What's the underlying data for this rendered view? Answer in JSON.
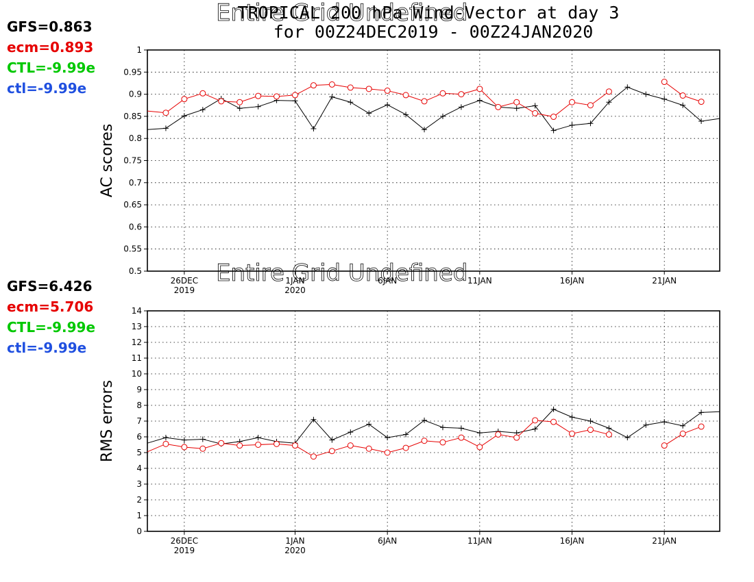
{
  "title": {
    "line1": "TROPICAL 200 hPa Wind-Vector at day 3",
    "line2": "for 00Z24DEC2019 - 00Z24JAN2020"
  },
  "ghost_text": "Entire Grid Undefined",
  "colors": {
    "gfs": "#000000",
    "ecm": "#e60000",
    "ctl_upper": "#00c800",
    "ctl_lower": "#2050e0"
  },
  "scores_ac": [
    {
      "label": "GFS=0.863",
      "color": "#000000"
    },
    {
      "label": "ecm=0.893",
      "color": "#e60000"
    },
    {
      "label": "CTL=-9.99e",
      "color": "#00c800"
    },
    {
      "label": "ctl=-9.99e",
      "color": "#2050e0"
    }
  ],
  "scores_rms": [
    {
      "label": "GFS=6.426",
      "color": "#000000"
    },
    {
      "label": "ecm=5.706",
      "color": "#e60000"
    },
    {
      "label": "CTL=-9.99e",
      "color": "#00c800"
    },
    {
      "label": "ctl=-9.99e",
      "color": "#2050e0"
    }
  ],
  "chart_data": [
    {
      "type": "line",
      "ylabel": "AC scores",
      "ylim": [
        0.5,
        1.0
      ],
      "yticks": [
        "0.5",
        "0.55",
        "0.6",
        "0.65",
        "0.7",
        "0.75",
        "0.8",
        "0.85",
        "0.9",
        "0.95",
        "1"
      ],
      "xlim": [
        0,
        31
      ],
      "xticks": [
        {
          "x": 2,
          "line1": "26DEC",
          "line2": "2019"
        },
        {
          "x": 8,
          "line1": "1JAN",
          "line2": "2020"
        },
        {
          "x": 13,
          "line1": "6JAN",
          "line2": ""
        },
        {
          "x": 18,
          "line1": "11JAN",
          "line2": ""
        },
        {
          "x": 23,
          "line1": "16JAN",
          "line2": ""
        },
        {
          "x": 28,
          "line1": "21JAN",
          "line2": ""
        }
      ],
      "grid": true,
      "series": [
        {
          "name": "GFS",
          "marker": "plus",
          "values": [
            0.82,
            0.823,
            0.851,
            0.865,
            0.89,
            0.868,
            0.872,
            0.886,
            0.885,
            0.822,
            0.894,
            0.882,
            0.857,
            0.876,
            0.854,
            0.82,
            0.85,
            0.871,
            0.886,
            0.871,
            0.868,
            0.874,
            0.818,
            0.83,
            0.834,
            0.882,
            0.916,
            0.9,
            0.889,
            0.875,
            0.839,
            0.845
          ]
        },
        {
          "name": "ecm",
          "marker": "circle",
          "values": [
            0.862,
            0.858,
            0.889,
            0.902,
            0.884,
            0.882,
            0.896,
            0.895,
            0.898,
            0.92,
            0.922,
            0.915,
            0.912,
            0.908,
            0.898,
            0.884,
            0.902,
            0.9,
            0.912,
            0.871,
            0.882,
            0.857,
            0.849,
            0.882,
            0.875,
            0.906,
            null,
            null,
            0.928,
            0.897,
            0.883,
            null
          ]
        }
      ]
    },
    {
      "type": "line",
      "ylabel": "RMS errors",
      "ylim": [
        0,
        14
      ],
      "yticks": [
        "0",
        "1",
        "2",
        "3",
        "4",
        "5",
        "6",
        "7",
        "8",
        "9",
        "10",
        "11",
        "12",
        "13",
        "14"
      ],
      "xlim": [
        0,
        31
      ],
      "xticks": [
        {
          "x": 2,
          "line1": "26DEC",
          "line2": "2019"
        },
        {
          "x": 8,
          "line1": "1JAN",
          "line2": "2020"
        },
        {
          "x": 13,
          "line1": "6JAN",
          "line2": ""
        },
        {
          "x": 18,
          "line1": "11JAN",
          "line2": ""
        },
        {
          "x": 23,
          "line1": "16JAN",
          "line2": ""
        },
        {
          "x": 28,
          "line1": "21JAN",
          "line2": ""
        }
      ],
      "grid": true,
      "series": [
        {
          "name": "GFS",
          "marker": "plus",
          "values": [
            5.6,
            5.95,
            5.8,
            5.85,
            5.55,
            5.7,
            5.95,
            5.7,
            5.6,
            7.1,
            5.8,
            6.3,
            6.8,
            5.95,
            6.15,
            7.05,
            6.6,
            6.55,
            6.25,
            6.35,
            6.25,
            6.5,
            7.75,
            7.25,
            7.0,
            6.55,
            5.95,
            6.75,
            6.95,
            6.7,
            7.55,
            7.6
          ]
        },
        {
          "name": "ecm",
          "marker": "circle",
          "values": [
            5.05,
            5.55,
            5.35,
            5.25,
            5.6,
            5.45,
            5.5,
            5.55,
            5.45,
            4.75,
            5.1,
            5.45,
            5.25,
            5.0,
            5.3,
            5.75,
            5.65,
            5.95,
            5.35,
            6.15,
            5.95,
            7.05,
            6.95,
            6.2,
            6.45,
            6.15,
            null,
            null,
            5.45,
            6.2,
            6.65,
            null
          ]
        }
      ]
    }
  ]
}
